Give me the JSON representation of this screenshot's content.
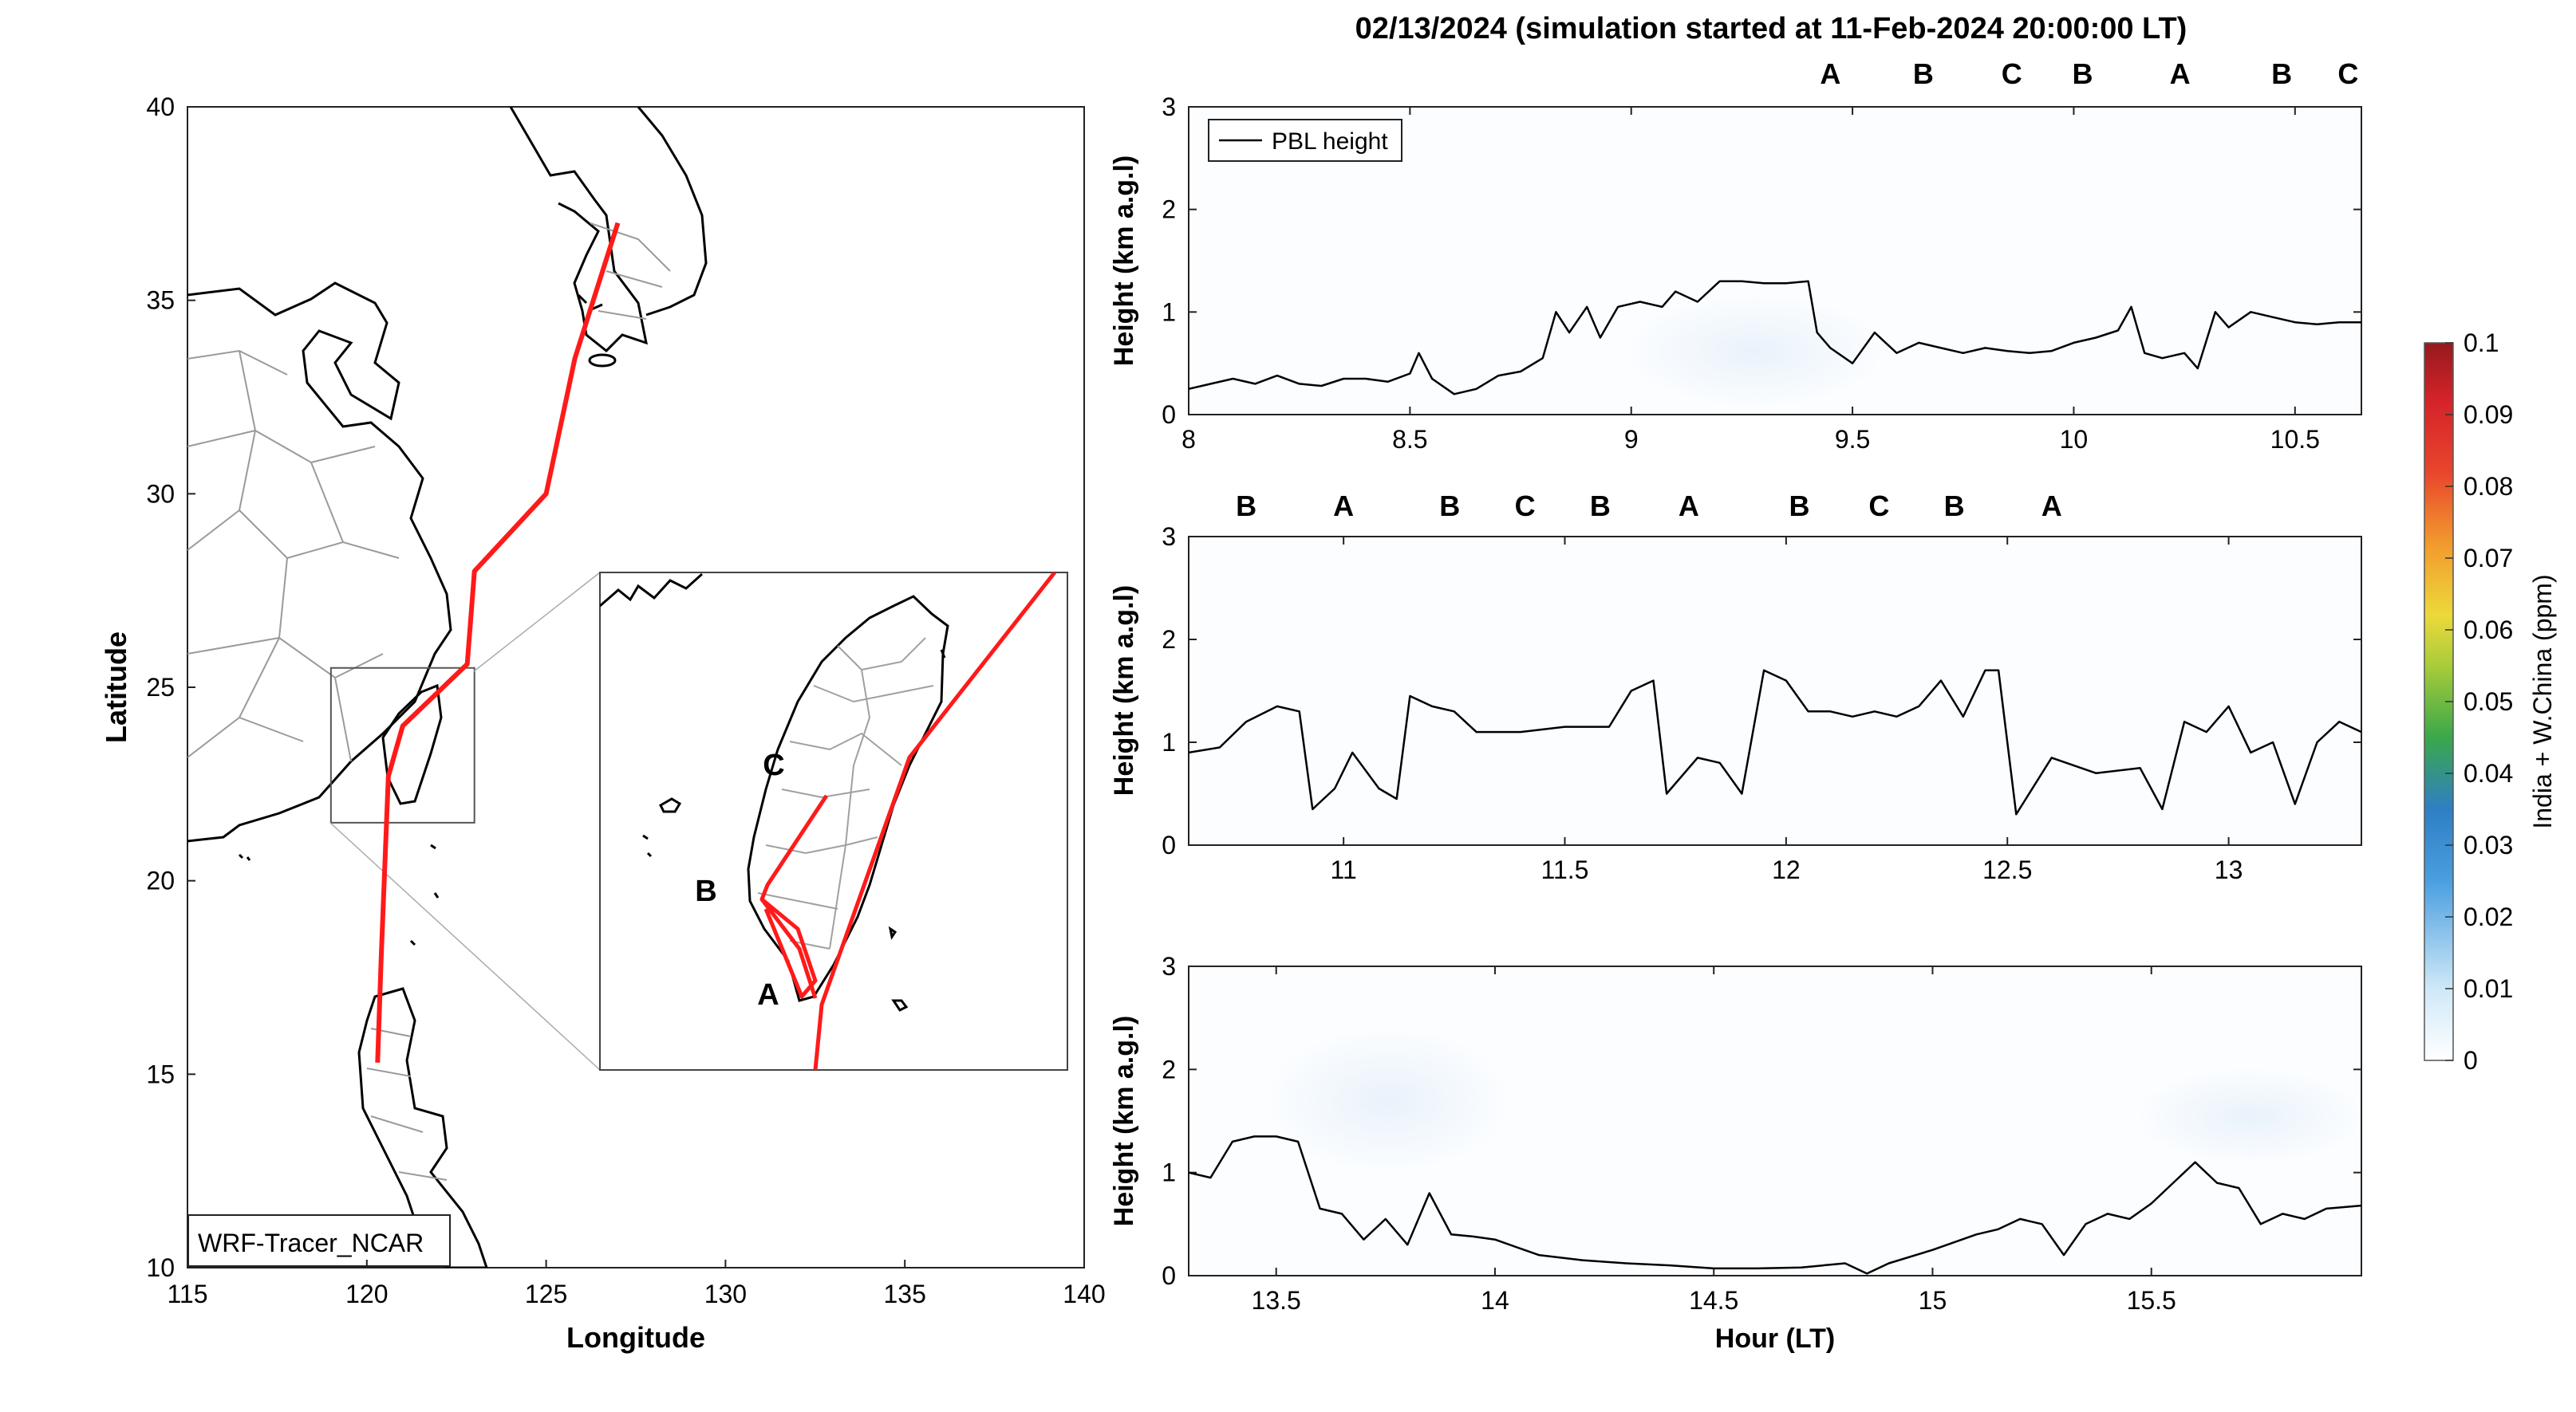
{
  "figure_title": "02/13/2024 (simulation started at 11-Feb-2024 20:00:00 LT)",
  "colors": {
    "A": "#111111",
    "B": "#a31f34",
    "C": "#e8a317",
    "track": "#ff1a1a",
    "pbl": "#000000"
  },
  "chart_data": [
    {
      "type": "map",
      "id": "map",
      "xlabel": "Longitude",
      "ylabel": "Latitude",
      "xlim": [
        115,
        140
      ],
      "ylim": [
        10,
        40
      ],
      "xticks": [
        115,
        120,
        125,
        130,
        135,
        140
      ],
      "yticks": [
        10,
        15,
        20,
        25,
        30,
        35,
        40
      ],
      "model_label": "WRF-Tracer_NCAR",
      "track": [
        [
          127.0,
          37.0
        ],
        [
          125.8,
          33.5
        ],
        [
          125.0,
          30.0
        ],
        [
          123.0,
          28.0
        ],
        [
          122.8,
          25.6
        ],
        [
          121.0,
          24.0
        ],
        [
          120.6,
          22.7
        ],
        [
          120.4,
          18.0
        ],
        [
          120.3,
          15.3
        ]
      ],
      "inset_box": {
        "lon": [
          119.0,
          123.0
        ],
        "lat": [
          21.5,
          25.5
        ]
      },
      "inset_labels": [
        {
          "text": "A",
          "group": "A",
          "lon": 120.7,
          "lat": 22.1
        },
        {
          "text": "B",
          "group": "B",
          "lon": 119.8,
          "lat": 22.95
        },
        {
          "text": "C",
          "group": "C",
          "lon": 120.45,
          "lat": 23.7
        }
      ]
    },
    {
      "type": "heatmap+line",
      "id": "p1",
      "series": [
        {
          "name": "PBL height"
        }
      ],
      "legend": "top-left",
      "ylabel": "Height (km a.g.l)",
      "xlim": [
        8,
        10.65
      ],
      "ylim": [
        0,
        3
      ],
      "xticks": [
        8,
        8.5,
        9,
        9.5,
        10,
        10.5
      ],
      "yticks": [
        0,
        1,
        2,
        3
      ],
      "markers": [
        {
          "text": "A",
          "group": "A",
          "x": 9.45
        },
        {
          "text": "B",
          "group": "B",
          "x": 9.66
        },
        {
          "text": "C",
          "group": "C",
          "x": 9.86
        },
        {
          "text": "B",
          "group": "B",
          "x": 10.02
        },
        {
          "text": "A",
          "group": "A",
          "x": 10.24
        },
        {
          "text": "B",
          "group": "B",
          "x": 10.47
        },
        {
          "text": "C",
          "group": "C",
          "x": 10.62
        }
      ],
      "pbl": [
        [
          8.0,
          0.25
        ],
        [
          8.05,
          0.3
        ],
        [
          8.1,
          0.35
        ],
        [
          8.15,
          0.3
        ],
        [
          8.2,
          0.38
        ],
        [
          8.25,
          0.3
        ],
        [
          8.3,
          0.28
        ],
        [
          8.35,
          0.35
        ],
        [
          8.4,
          0.35
        ],
        [
          8.45,
          0.32
        ],
        [
          8.5,
          0.4
        ],
        [
          8.52,
          0.6
        ],
        [
          8.55,
          0.35
        ],
        [
          8.6,
          0.2
        ],
        [
          8.65,
          0.25
        ],
        [
          8.7,
          0.38
        ],
        [
          8.75,
          0.42
        ],
        [
          8.8,
          0.55
        ],
        [
          8.83,
          1.0
        ],
        [
          8.86,
          0.8
        ],
        [
          8.9,
          1.05
        ],
        [
          8.93,
          0.75
        ],
        [
          8.97,
          1.05
        ],
        [
          9.02,
          1.1
        ],
        [
          9.07,
          1.05
        ],
        [
          9.1,
          1.2
        ],
        [
          9.15,
          1.1
        ],
        [
          9.2,
          1.3
        ],
        [
          9.25,
          1.3
        ],
        [
          9.3,
          1.28
        ],
        [
          9.35,
          1.28
        ],
        [
          9.4,
          1.3
        ],
        [
          9.42,
          0.8
        ],
        [
          9.45,
          0.65
        ],
        [
          9.5,
          0.5
        ],
        [
          9.55,
          0.8
        ],
        [
          9.6,
          0.6
        ],
        [
          9.65,
          0.7
        ],
        [
          9.7,
          0.65
        ],
        [
          9.75,
          0.6
        ],
        [
          9.8,
          0.65
        ],
        [
          9.85,
          0.62
        ],
        [
          9.9,
          0.6
        ],
        [
          9.95,
          0.62
        ],
        [
          10.0,
          0.7
        ],
        [
          10.05,
          0.75
        ],
        [
          10.1,
          0.82
        ],
        [
          10.13,
          1.05
        ],
        [
          10.16,
          0.6
        ],
        [
          10.2,
          0.55
        ],
        [
          10.25,
          0.6
        ],
        [
          10.28,
          0.45
        ],
        [
          10.32,
          1.0
        ],
        [
          10.35,
          0.85
        ],
        [
          10.4,
          1.0
        ],
        [
          10.45,
          0.95
        ],
        [
          10.5,
          0.9
        ],
        [
          10.55,
          0.88
        ],
        [
          10.6,
          0.9
        ],
        [
          10.65,
          0.9
        ]
      ]
    },
    {
      "type": "heatmap+line",
      "id": "p2",
      "ylabel": "Height (km a.g.l)",
      "xlim": [
        10.65,
        13.3
      ],
      "ylim": [
        0,
        3
      ],
      "xticks": [
        11,
        11.5,
        12,
        12.5,
        13
      ],
      "yticks": [
        0,
        1,
        2,
        3
      ],
      "markers": [
        {
          "text": "B",
          "group": "B",
          "x": 10.78
        },
        {
          "text": "A",
          "group": "A",
          "x": 11.0
        },
        {
          "text": "B",
          "group": "B",
          "x": 11.24
        },
        {
          "text": "C",
          "group": "C",
          "x": 11.41
        },
        {
          "text": "B",
          "group": "B",
          "x": 11.58
        },
        {
          "text": "A",
          "group": "A",
          "x": 11.78
        },
        {
          "text": "B",
          "group": "B",
          "x": 12.03
        },
        {
          "text": "C",
          "group": "C",
          "x": 12.21
        },
        {
          "text": "B",
          "group": "B",
          "x": 12.38
        },
        {
          "text": "A",
          "group": "A",
          "x": 12.6
        }
      ],
      "pbl": [
        [
          10.65,
          0.9
        ],
        [
          10.72,
          0.95
        ],
        [
          10.78,
          1.2
        ],
        [
          10.85,
          1.35
        ],
        [
          10.9,
          1.3
        ],
        [
          10.93,
          0.35
        ],
        [
          10.98,
          0.55
        ],
        [
          11.02,
          0.9
        ],
        [
          11.08,
          0.55
        ],
        [
          11.12,
          0.45
        ],
        [
          11.15,
          1.45
        ],
        [
          11.2,
          1.35
        ],
        [
          11.25,
          1.3
        ],
        [
          11.3,
          1.1
        ],
        [
          11.4,
          1.1
        ],
        [
          11.5,
          1.15
        ],
        [
          11.6,
          1.15
        ],
        [
          11.65,
          1.5
        ],
        [
          11.7,
          1.6
        ],
        [
          11.73,
          0.5
        ],
        [
          11.8,
          0.85
        ],
        [
          11.85,
          0.8
        ],
        [
          11.9,
          0.5
        ],
        [
          11.95,
          1.7
        ],
        [
          12.0,
          1.6
        ],
        [
          12.05,
          1.3
        ],
        [
          12.1,
          1.3
        ],
        [
          12.15,
          1.25
        ],
        [
          12.2,
          1.3
        ],
        [
          12.25,
          1.25
        ],
        [
          12.3,
          1.35
        ],
        [
          12.35,
          1.6
        ],
        [
          12.4,
          1.25
        ],
        [
          12.45,
          1.7
        ],
        [
          12.48,
          1.7
        ],
        [
          12.52,
          0.3
        ],
        [
          12.6,
          0.85
        ],
        [
          12.7,
          0.7
        ],
        [
          12.8,
          0.75
        ],
        [
          12.85,
          0.35
        ],
        [
          12.9,
          1.2
        ],
        [
          12.95,
          1.1
        ],
        [
          13.0,
          1.35
        ],
        [
          13.05,
          0.9
        ],
        [
          13.1,
          1.0
        ],
        [
          13.15,
          0.4
        ],
        [
          13.2,
          1.0
        ],
        [
          13.25,
          1.2
        ],
        [
          13.3,
          1.1
        ]
      ]
    },
    {
      "type": "heatmap+line",
      "id": "p3",
      "ylabel": "Height (km a.g.l)",
      "xlabel": "Hour (LT)",
      "xlim": [
        13.3,
        15.98
      ],
      "ylim": [
        0,
        3
      ],
      "xticks": [
        13.5,
        14,
        14.5,
        15,
        15.5
      ],
      "yticks": [
        0,
        1,
        2,
        3
      ],
      "pbl": [
        [
          13.3,
          1.0
        ],
        [
          13.35,
          0.95
        ],
        [
          13.4,
          1.3
        ],
        [
          13.45,
          1.35
        ],
        [
          13.5,
          1.35
        ],
        [
          13.55,
          1.3
        ],
        [
          13.6,
          0.65
        ],
        [
          13.65,
          0.6
        ],
        [
          13.7,
          0.35
        ],
        [
          13.75,
          0.55
        ],
        [
          13.8,
          0.3
        ],
        [
          13.85,
          0.8
        ],
        [
          13.9,
          0.4
        ],
        [
          13.95,
          0.38
        ],
        [
          14.0,
          0.35
        ],
        [
          14.1,
          0.2
        ],
        [
          14.2,
          0.15
        ],
        [
          14.3,
          0.12
        ],
        [
          14.4,
          0.1
        ],
        [
          14.5,
          0.07
        ],
        [
          14.6,
          0.07
        ],
        [
          14.7,
          0.08
        ],
        [
          14.8,
          0.12
        ],
        [
          14.85,
          0.02
        ],
        [
          14.9,
          0.12
        ],
        [
          15.0,
          0.25
        ],
        [
          15.1,
          0.4
        ],
        [
          15.15,
          0.45
        ],
        [
          15.2,
          0.55
        ],
        [
          15.25,
          0.5
        ],
        [
          15.3,
          0.2
        ],
        [
          15.35,
          0.5
        ],
        [
          15.4,
          0.6
        ],
        [
          15.45,
          0.55
        ],
        [
          15.5,
          0.7
        ],
        [
          15.55,
          0.9
        ],
        [
          15.6,
          1.1
        ],
        [
          15.65,
          0.9
        ],
        [
          15.7,
          0.85
        ],
        [
          15.75,
          0.5
        ],
        [
          15.8,
          0.6
        ],
        [
          15.85,
          0.55
        ],
        [
          15.9,
          0.65
        ],
        [
          15.98,
          0.68
        ]
      ]
    },
    {
      "type": "colorbar",
      "id": "cbar",
      "label": "India + W.China (ppm)",
      "range": [
        0,
        0.1
      ],
      "ticks": [
        "0",
        "0.01",
        "0.02",
        "0.03",
        "0.04",
        "0.05",
        "0.06",
        "0.07",
        "0.08",
        "0.09",
        "0.1"
      ]
    }
  ]
}
